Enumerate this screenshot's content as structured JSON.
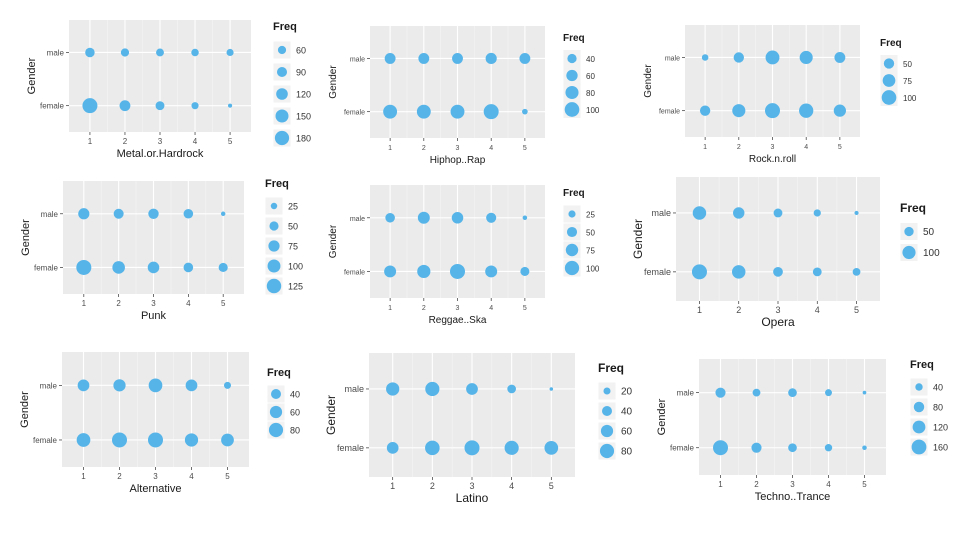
{
  "chart_data": [
    {
      "type": "scatter",
      "xlabel": "Metal.or.Hardrock",
      "ylabel": "Gender",
      "x": [
        1,
        2,
        3,
        4,
        5
      ],
      "categories": [
        "male",
        "female"
      ],
      "sizes": {
        "male": [
          80,
          60,
          55,
          50,
          45
        ],
        "female": [
          200,
          105,
          70,
          45,
          15
        ]
      },
      "legend_title": "Freq",
      "legend_values": [
        60,
        90,
        120,
        150,
        180
      ],
      "point_color": "#56B4E9",
      "panel_color": "#EBEBEB"
    },
    {
      "type": "scatter",
      "xlabel": "Hiphop..Rap",
      "ylabel": "Gender",
      "x": [
        1,
        2,
        3,
        4,
        5
      ],
      "categories": [
        "male",
        "female"
      ],
      "sizes": {
        "male": [
          55,
          55,
          55,
          58,
          55
        ],
        "female": [
          90,
          90,
          90,
          105,
          15
        ]
      },
      "legend_title": "Freq",
      "legend_values": [
        40,
        60,
        80,
        100
      ],
      "point_color": "#56B4E9",
      "panel_color": "#EBEBEB"
    },
    {
      "type": "scatter",
      "xlabel": "Rock.n.roll",
      "ylabel": "Gender",
      "x": [
        1,
        2,
        3,
        4,
        5
      ],
      "categories": [
        "male",
        "female"
      ],
      "sizes": {
        "male": [
          20,
          50,
          90,
          80,
          55
        ],
        "female": [
          50,
          80,
          105,
          95,
          70
        ]
      },
      "legend_title": "Freq",
      "legend_values": [
        50,
        75,
        100
      ],
      "point_color": "#56B4E9",
      "panel_color": "#EBEBEB"
    },
    {
      "type": "scatter",
      "xlabel": "Punk",
      "ylabel": "Gender",
      "x": [
        1,
        2,
        3,
        4,
        5
      ],
      "categories": [
        "male",
        "female"
      ],
      "sizes": {
        "male": [
          75,
          60,
          65,
          55,
          12
        ],
        "female": [
          135,
          95,
          80,
          55,
          50
        ]
      },
      "legend_title": "Freq",
      "legend_values": [
        25,
        50,
        75,
        100,
        125
      ],
      "point_color": "#56B4E9",
      "panel_color": "#EBEBEB"
    },
    {
      "type": "scatter",
      "xlabel": "Reggae..Ska",
      "ylabel": "Gender",
      "x": [
        1,
        2,
        3,
        4,
        5
      ],
      "categories": [
        "male",
        "female"
      ],
      "sizes": {
        "male": [
          45,
          70,
          65,
          50,
          10
        ],
        "female": [
          70,
          85,
          110,
          70,
          40
        ]
      },
      "legend_title": "Freq",
      "legend_values": [
        25,
        50,
        75,
        100
      ],
      "point_color": "#56B4E9",
      "panel_color": "#EBEBEB"
    },
    {
      "type": "scatter",
      "xlabel": "Opera",
      "ylabel": "Gender",
      "x": [
        1,
        2,
        3,
        4,
        5
      ],
      "categories": [
        "male",
        "female"
      ],
      "sizes": {
        "male": [
          105,
          75,
          45,
          30,
          10
        ],
        "female": [
          130,
          105,
          55,
          45,
          35
        ]
      },
      "legend_title": "Freq",
      "legend_values": [
        50,
        100
      ],
      "point_color": "#56B4E9",
      "panel_color": "#EBEBEB"
    },
    {
      "type": "scatter",
      "xlabel": "Alternative",
      "ylabel": "Gender",
      "x": [
        1,
        2,
        3,
        4,
        5
      ],
      "categories": [
        "male",
        "female"
      ],
      "sizes": {
        "male": [
          55,
          60,
          75,
          55,
          20
        ],
        "female": [
          75,
          90,
          90,
          70,
          65
        ]
      },
      "legend_title": "Freq",
      "legend_values": [
        40,
        60,
        80
      ],
      "point_color": "#56B4E9",
      "panel_color": "#EBEBEB"
    },
    {
      "type": "scatter",
      "xlabel": "Latino",
      "ylabel": "Gender",
      "x": [
        1,
        2,
        3,
        4,
        5
      ],
      "categories": [
        "male",
        "female"
      ],
      "sizes": {
        "male": [
          70,
          80,
          55,
          30,
          5
        ],
        "female": [
          55,
          85,
          90,
          80,
          75
        ]
      },
      "legend_title": "Freq",
      "legend_values": [
        20,
        40,
        60,
        80
      ],
      "point_color": "#56B4E9",
      "panel_color": "#EBEBEB"
    },
    {
      "type": "scatter",
      "xlabel": "Techno..Trance",
      "ylabel": "Gender",
      "x": [
        1,
        2,
        3,
        4,
        5
      ],
      "categories": [
        "male",
        "female"
      ],
      "sizes": {
        "male": [
          75,
          45,
          55,
          35,
          10
        ],
        "female": [
          165,
          75,
          55,
          40,
          15
        ]
      },
      "legend_title": "Freq",
      "legend_values": [
        40,
        80,
        120,
        160
      ],
      "point_color": "#56B4E9",
      "panel_color": "#EBEBEB"
    }
  ]
}
